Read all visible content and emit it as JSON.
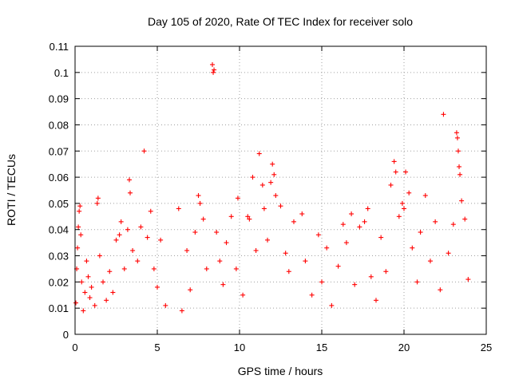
{
  "chart_data": {
    "type": "scatter",
    "title": "Day 105 of 2020, Rate Of TEC Index for receiver solo",
    "xlabel": "GPS time / hours",
    "ylabel": "ROTI / TECUs",
    "xlim": [
      0,
      25
    ],
    "ylim": [
      0,
      0.11
    ],
    "xticks": [
      "0",
      "5",
      "10",
      "15",
      "20",
      "25"
    ],
    "yticks": [
      "0",
      "0.01",
      "0.02",
      "0.03",
      "0.04",
      "0.05",
      "0.06",
      "0.07",
      "0.08",
      "0.09",
      "0.1",
      "0.11"
    ],
    "grid": true,
    "marker": "+",
    "series": [
      {
        "color": "#ff0000",
        "points": [
          [
            0.05,
            0.012
          ],
          [
            0.1,
            0.025
          ],
          [
            0.15,
            0.033
          ],
          [
            0.2,
            0.041
          ],
          [
            0.25,
            0.047
          ],
          [
            0.3,
            0.049
          ],
          [
            0.35,
            0.038
          ],
          [
            0.4,
            0.02
          ],
          [
            0.5,
            0.009
          ],
          [
            0.6,
            0.016
          ],
          [
            0.7,
            0.028
          ],
          [
            0.8,
            0.022
          ],
          [
            0.9,
            0.014
          ],
          [
            1.0,
            0.018
          ],
          [
            1.2,
            0.011
          ],
          [
            1.35,
            0.05
          ],
          [
            1.4,
            0.052
          ],
          [
            1.5,
            0.03
          ],
          [
            1.7,
            0.02
          ],
          [
            1.9,
            0.013
          ],
          [
            2.1,
            0.024
          ],
          [
            2.3,
            0.016
          ],
          [
            2.5,
            0.036
          ],
          [
            2.7,
            0.038
          ],
          [
            2.8,
            0.043
          ],
          [
            3.0,
            0.025
          ],
          [
            3.2,
            0.04
          ],
          [
            3.3,
            0.059
          ],
          [
            3.35,
            0.054
          ],
          [
            3.5,
            0.032
          ],
          [
            3.8,
            0.028
          ],
          [
            4.0,
            0.041
          ],
          [
            4.2,
            0.07
          ],
          [
            4.4,
            0.037
          ],
          [
            4.6,
            0.047
          ],
          [
            4.8,
            0.025
          ],
          [
            5.0,
            0.018
          ],
          [
            5.2,
            0.036
          ],
          [
            5.5,
            0.011
          ],
          [
            6.3,
            0.048
          ],
          [
            6.5,
            0.009
          ],
          [
            6.8,
            0.032
          ],
          [
            7.0,
            0.017
          ],
          [
            7.3,
            0.039
          ],
          [
            7.5,
            0.053
          ],
          [
            7.6,
            0.05
          ],
          [
            7.8,
            0.044
          ],
          [
            8.0,
            0.025
          ],
          [
            8.35,
            0.103
          ],
          [
            8.4,
            0.1
          ],
          [
            8.45,
            0.101
          ],
          [
            8.6,
            0.039
          ],
          [
            8.8,
            0.028
          ],
          [
            9.0,
            0.019
          ],
          [
            9.2,
            0.035
          ],
          [
            9.5,
            0.045
          ],
          [
            9.8,
            0.025
          ],
          [
            9.9,
            0.052
          ],
          [
            10.2,
            0.015
          ],
          [
            10.5,
            0.045
          ],
          [
            10.6,
            0.044
          ],
          [
            10.8,
            0.06
          ],
          [
            11.0,
            0.032
          ],
          [
            11.2,
            0.069
          ],
          [
            11.4,
            0.057
          ],
          [
            11.5,
            0.048
          ],
          [
            11.7,
            0.036
          ],
          [
            11.9,
            0.058
          ],
          [
            12.0,
            0.065
          ],
          [
            12.1,
            0.061
          ],
          [
            12.2,
            0.053
          ],
          [
            12.5,
            0.049
          ],
          [
            12.8,
            0.031
          ],
          [
            13.0,
            0.024
          ],
          [
            13.3,
            0.043
          ],
          [
            13.8,
            0.046
          ],
          [
            14.0,
            0.028
          ],
          [
            14.4,
            0.015
          ],
          [
            14.8,
            0.038
          ],
          [
            15.0,
            0.02
          ],
          [
            15.3,
            0.033
          ],
          [
            15.6,
            0.011
          ],
          [
            16.0,
            0.026
          ],
          [
            16.3,
            0.042
          ],
          [
            16.5,
            0.035
          ],
          [
            16.8,
            0.046
          ],
          [
            17.0,
            0.019
          ],
          [
            17.3,
            0.041
          ],
          [
            17.6,
            0.043
          ],
          [
            17.8,
            0.048
          ],
          [
            18.0,
            0.022
          ],
          [
            18.3,
            0.013
          ],
          [
            18.6,
            0.037
          ],
          [
            18.9,
            0.024
          ],
          [
            19.2,
            0.057
          ],
          [
            19.4,
            0.066
          ],
          [
            19.5,
            0.062
          ],
          [
            19.7,
            0.045
          ],
          [
            19.9,
            0.05
          ],
          [
            20.0,
            0.048
          ],
          [
            20.1,
            0.062
          ],
          [
            20.3,
            0.054
          ],
          [
            20.5,
            0.033
          ],
          [
            20.8,
            0.02
          ],
          [
            21.0,
            0.039
          ],
          [
            21.3,
            0.053
          ],
          [
            21.6,
            0.028
          ],
          [
            21.9,
            0.043
          ],
          [
            22.2,
            0.017
          ],
          [
            22.4,
            0.084
          ],
          [
            22.7,
            0.031
          ],
          [
            23.0,
            0.042
          ],
          [
            23.2,
            0.077
          ],
          [
            23.25,
            0.075
          ],
          [
            23.3,
            0.07
          ],
          [
            23.35,
            0.064
          ],
          [
            23.4,
            0.061
          ],
          [
            23.5,
            0.051
          ],
          [
            23.7,
            0.044
          ],
          [
            23.9,
            0.021
          ]
        ]
      }
    ]
  }
}
